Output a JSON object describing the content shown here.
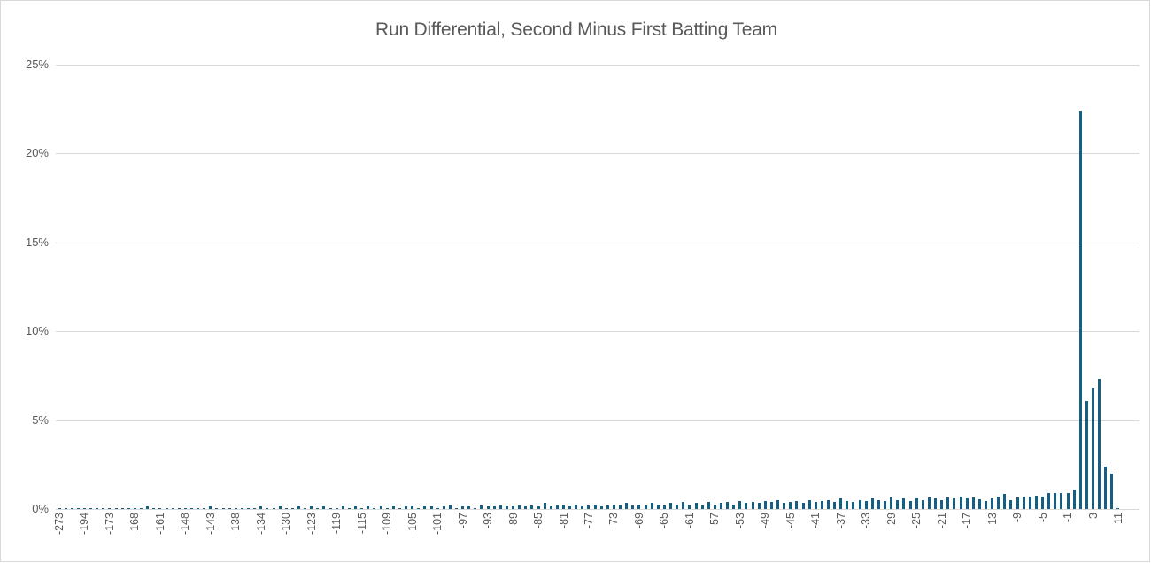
{
  "title": "Run Differential, Second Minus First Batting Team",
  "colors": {
    "bar": "#156082",
    "gridline": "#d9d9d9",
    "axis_text": "#595959",
    "title_text": "#595959",
    "card_border": "#d9d9d9",
    "background": "#ffffff"
  },
  "chart_data": {
    "type": "bar",
    "title": "Run Differential, Second Minus First Batting Team",
    "xlabel": "",
    "ylabel": "",
    "ylim": [
      0,
      25
    ],
    "grid": "horizontal",
    "legend": "none",
    "y_tick_labels_top_to_bottom": [
      "25%",
      "20%",
      "15%",
      "10%",
      "5%",
      "0%"
    ],
    "x_label_interval": 4,
    "x_labels_shown": [
      -273,
      -194,
      -173,
      -168,
      -161,
      -148,
      -143,
      -138,
      -134,
      -130,
      -123,
      -119,
      -115,
      -109,
      -105,
      -101,
      -97,
      -93,
      -89,
      -85,
      -81,
      -77,
      -73,
      -69,
      -65,
      -61,
      -57,
      -53,
      -49,
      -45,
      -41,
      -37,
      -33,
      -29,
      -25,
      -21,
      -17,
      -13,
      -9,
      -5,
      -1,
      3,
      11
    ],
    "categories": [
      -273,
      -253,
      -233,
      -213,
      -194,
      -189,
      -184,
      -178,
      -173,
      -172,
      -171,
      -170,
      -168,
      -166,
      -164,
      -162,
      -161,
      -158,
      -155,
      -151,
      -148,
      -147,
      -146,
      -144,
      -143,
      -142,
      -140,
      -139,
      -138,
      -137,
      -136,
      -135,
      -134,
      -133,
      -132,
      -131,
      -130,
      -128,
      -126,
      -124,
      -123,
      -122,
      -121,
      -120,
      -119,
      -118,
      -117,
      -116,
      -115,
      -113,
      -112,
      -110,
      -109,
      -108,
      -107,
      -106,
      -105,
      -104,
      -103,
      -102,
      -101,
      -100,
      -99,
      -98,
      -97,
      -96,
      -95,
      -94,
      -93,
      -92,
      -91,
      -90,
      -89,
      -88,
      -87,
      -86,
      -85,
      -84,
      -83,
      -82,
      -81,
      -80,
      -79,
      -78,
      -77,
      -76,
      -75,
      -74,
      -73,
      -72,
      -71,
      -70,
      -69,
      -68,
      -67,
      -66,
      -65,
      -64,
      -63,
      -62,
      -61,
      -60,
      -59,
      -58,
      -57,
      -56,
      -55,
      -54,
      -53,
      -52,
      -51,
      -50,
      -49,
      -48,
      -47,
      -46,
      -45,
      -44,
      -43,
      -42,
      -41,
      -40,
      -39,
      -38,
      -37,
      -36,
      -35,
      -34,
      -33,
      -32,
      -31,
      -30,
      -29,
      -28,
      -27,
      -26,
      -25,
      -24,
      -23,
      -22,
      -21,
      -20,
      -19,
      -18,
      -17,
      -16,
      -15,
      -14,
      -13,
      -12,
      -11,
      -10,
      -9,
      -8,
      -7,
      -6,
      -5,
      -4,
      -3,
      -2,
      -1,
      0,
      1,
      2,
      3,
      4,
      5,
      6,
      11
    ],
    "values_percent": [
      0.07,
      0.07,
      0.07,
      0.07,
      0.07,
      0.07,
      0.07,
      0.07,
      0.07,
      0.07,
      0.07,
      0.07,
      0.07,
      0.07,
      0.13,
      0.07,
      0.07,
      0.07,
      0.07,
      0.07,
      0.07,
      0.07,
      0.07,
      0.07,
      0.13,
      0.07,
      0.07,
      0.07,
      0.07,
      0.07,
      0.07,
      0.07,
      0.13,
      0.07,
      0.07,
      0.13,
      0.07,
      0.07,
      0.13,
      0.07,
      0.13,
      0.07,
      0.13,
      0.07,
      0.07,
      0.13,
      0.07,
      0.13,
      0.07,
      0.13,
      0.07,
      0.13,
      0.07,
      0.13,
      0.07,
      0.13,
      0.13,
      0.07,
      0.13,
      0.13,
      0.07,
      0.13,
      0.2,
      0.07,
      0.13,
      0.13,
      0.07,
      0.2,
      0.13,
      0.13,
      0.2,
      0.13,
      0.13,
      0.2,
      0.13,
      0.2,
      0.13,
      0.33,
      0.13,
      0.2,
      0.2,
      0.13,
      0.26,
      0.13,
      0.2,
      0.26,
      0.13,
      0.2,
      0.26,
      0.2,
      0.33,
      0.2,
      0.26,
      0.2,
      0.33,
      0.26,
      0.2,
      0.33,
      0.26,
      0.39,
      0.26,
      0.33,
      0.2,
      0.39,
      0.26,
      0.33,
      0.39,
      0.26,
      0.46,
      0.33,
      0.39,
      0.33,
      0.46,
      0.39,
      0.52,
      0.33,
      0.39,
      0.46,
      0.33,
      0.52,
      0.39,
      0.46,
      0.52,
      0.39,
      0.59,
      0.46,
      0.39,
      0.52,
      0.46,
      0.59,
      0.52,
      0.46,
      0.65,
      0.52,
      0.59,
      0.46,
      0.59,
      0.52,
      0.65,
      0.59,
      0.52,
      0.65,
      0.59,
      0.72,
      0.59,
      0.66,
      0.55,
      0.46,
      0.58,
      0.71,
      0.83,
      0.51,
      0.63,
      0.71,
      0.71,
      0.76,
      0.71,
      0.88,
      0.88,
      0.92,
      0.88,
      1.1,
      22.4,
      6.1,
      6.8,
      7.3,
      2.4,
      2.0,
      0.07
    ]
  }
}
